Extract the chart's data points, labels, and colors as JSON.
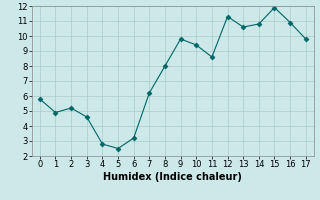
{
  "x": [
    0,
    1,
    2,
    3,
    4,
    5,
    6,
    7,
    8,
    9,
    10,
    11,
    12,
    13,
    14,
    15,
    16,
    17
  ],
  "y": [
    5.8,
    4.9,
    5.2,
    4.6,
    2.8,
    2.5,
    3.2,
    6.2,
    8.0,
    9.8,
    9.4,
    8.6,
    11.3,
    10.6,
    10.8,
    11.9,
    10.9,
    9.8
  ],
  "line_color": "#006666",
  "marker_color": "#006666",
  "bg_color": "#cce8e8",
  "grid_color": "#aacccc",
  "xlabel": "Humidex (Indice chaleur)",
  "xlim": [
    -0.5,
    17.5
  ],
  "ylim": [
    2,
    12
  ],
  "yticks": [
    2,
    3,
    4,
    5,
    6,
    7,
    8,
    9,
    10,
    11,
    12
  ],
  "xticks": [
    0,
    1,
    2,
    3,
    4,
    5,
    6,
    7,
    8,
    9,
    10,
    11,
    12,
    13,
    14,
    15,
    16,
    17
  ],
  "tick_fontsize": 6,
  "xlabel_fontsize": 7
}
